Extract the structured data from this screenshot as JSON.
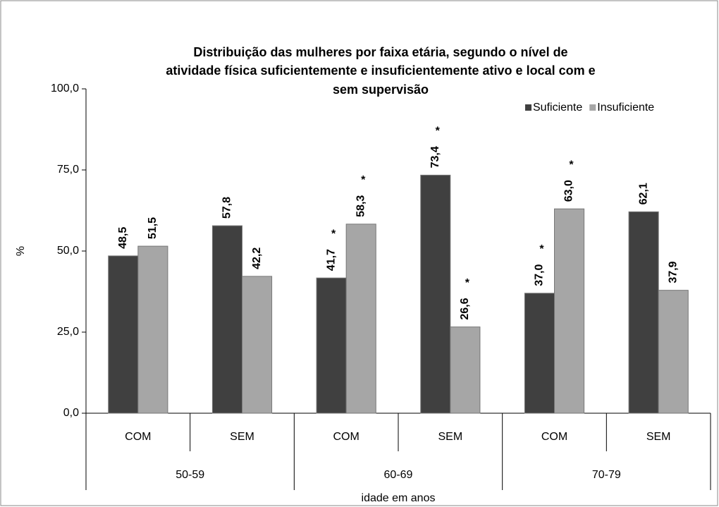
{
  "chart_data": {
    "type": "bar",
    "title": [
      "Distribuição das mulheres por faixa etária, segundo o nível de",
      "atividade física suficientemente e insuficientemente ativo e local com e",
      "sem supervisão"
    ],
    "categories": [
      "COM",
      "SEM",
      "COM",
      "SEM",
      "COM",
      "SEM"
    ],
    "groups": [
      "50-59",
      "60-69",
      "70-79"
    ],
    "x_label": "idade em anos",
    "y_label": "%",
    "ylim": [
      0,
      100
    ],
    "yticks": [
      {
        "value": 0,
        "label": "0,0"
      },
      {
        "value": 25,
        "label": "25,0"
      },
      {
        "value": 50,
        "label": "50,0"
      },
      {
        "value": 75,
        "label": "75,0"
      },
      {
        "value": 100,
        "label": "100,0"
      }
    ],
    "legend": "top-right",
    "series": [
      {
        "name": "Suficiente",
        "color": "#404040",
        "values": [
          48.5,
          57.8,
          41.7,
          73.4,
          37.0,
          62.1
        ],
        "value_labels": [
          "48,5",
          "57,8",
          "41,7",
          "73,4",
          "37,0",
          "62,1"
        ]
      },
      {
        "name": "Insuficiente",
        "color": "#a6a6a6",
        "values": [
          51.5,
          42.2,
          58.3,
          26.6,
          63.0,
          37.9
        ],
        "value_labels": [
          "51,5",
          "42,2",
          "58,3",
          "26,6",
          "63,0",
          "37,9"
        ]
      }
    ],
    "annotations": [
      {
        "series": 0,
        "index": 2,
        "text": "*"
      },
      {
        "series": 0,
        "index": 3,
        "text": "*"
      },
      {
        "series": 0,
        "index": 4,
        "text": "*"
      },
      {
        "series": 1,
        "index": 2,
        "text": "*"
      },
      {
        "series": 1,
        "index": 3,
        "text": "*"
      },
      {
        "series": 1,
        "index": 4,
        "text": "*"
      }
    ]
  }
}
